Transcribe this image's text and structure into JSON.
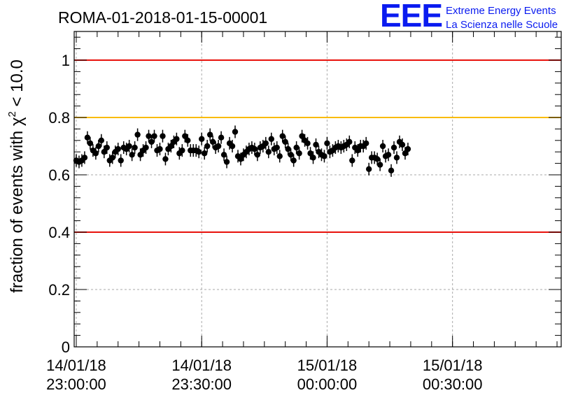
{
  "chart_data": {
    "type": "scatter",
    "title": "ROMA-01-2018-01-15-00001",
    "xlabel": "",
    "ylabel_prefix": "fraction of events with ",
    "ylabel_symbol": "χ",
    "ylabel_sup": "2",
    "ylabel_suffix": " < 10.0",
    "ylim": [
      0,
      1.1
    ],
    "xlim": [
      "2018-01-14T22:59:30",
      "2018-01-15T00:56:00"
    ],
    "grid": true,
    "y_ticks": [
      {
        "value": 0,
        "label": "0"
      },
      {
        "value": 0.2,
        "label": "0.2"
      },
      {
        "value": 0.4,
        "label": "0.4"
      },
      {
        "value": 0.6,
        "label": "0.6"
      },
      {
        "value": 0.8,
        "label": "0.8"
      },
      {
        "value": 1,
        "label": "1"
      }
    ],
    "x_ticks": [
      {
        "time": "2018-01-14T23:00:00",
        "date": "14/01/18",
        "clock": "23:00:00"
      },
      {
        "time": "2018-01-14T23:30:00",
        "date": "14/01/18",
        "clock": "23:30:00"
      },
      {
        "time": "2018-01-15T00:00:00",
        "date": "15/01/18",
        "clock": "00:00:00"
      },
      {
        "time": "2018-01-15T00:30:00",
        "date": "15/01/18",
        "clock": "00:30:00"
      }
    ],
    "reference_lines": [
      {
        "y": 1.0,
        "color": "#e8120c"
      },
      {
        "y": 0.8,
        "color": "#f9bb00"
      },
      {
        "y": 0.4,
        "color": "#e8120c"
      }
    ],
    "series": [
      {
        "color": "#000000",
        "error": 0.022,
        "x_start": "2018-01-14T23:00:00",
        "x_step_seconds": 40,
        "values": [
          0.65,
          0.645,
          0.65,
          0.66,
          0.73,
          0.71,
          0.685,
          0.675,
          0.7,
          0.72,
          0.68,
          0.695,
          0.65,
          0.66,
          0.68,
          0.69,
          0.65,
          0.695,
          0.69,
          0.7,
          0.67,
          0.695,
          0.74,
          0.67,
          0.685,
          0.695,
          0.735,
          0.715,
          0.735,
          0.685,
          0.69,
          0.735,
          0.655,
          0.69,
          0.7,
          0.715,
          0.725,
          0.675,
          0.685,
          0.735,
          0.72,
          0.685,
          0.685,
          0.685,
          0.68,
          0.725,
          0.675,
          0.7,
          0.74,
          0.715,
          0.695,
          0.7,
          0.73,
          0.67,
          0.645,
          0.71,
          0.7,
          0.75,
          0.665,
          0.655,
          0.67,
          0.68,
          0.69,
          0.695,
          0.69,
          0.67,
          0.695,
          0.7,
          0.71,
          0.68,
          0.725,
          0.69,
          0.695,
          0.665,
          0.735,
          0.715,
          0.69,
          0.67,
          0.65,
          0.695,
          0.675,
          0.735,
          0.72,
          0.71,
          0.675,
          0.66,
          0.705,
          0.68,
          0.67,
          0.665,
          0.71,
          0.68,
          0.685,
          0.695,
          0.7,
          0.695,
          0.7,
          0.705,
          0.715,
          0.65,
          0.695,
          0.685,
          0.7,
          0.7,
          0.71,
          0.62,
          0.66,
          0.66,
          0.655,
          0.635,
          0.7,
          0.665,
          0.67,
          0.615,
          0.695,
          0.66,
          0.715,
          0.705,
          0.675,
          0.69
        ]
      }
    ]
  },
  "logo": {
    "letters": "EEE",
    "line1": "Extreme Energy Events",
    "line2": "La Scienza nelle Scuole"
  }
}
